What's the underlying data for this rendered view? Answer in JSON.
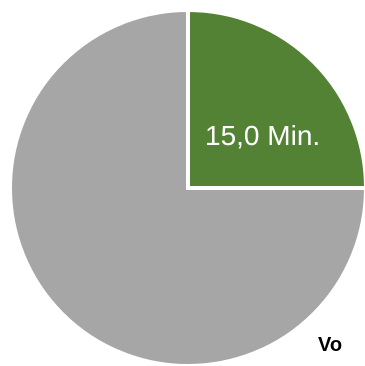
{
  "chart_data": {
    "type": "pie",
    "slices": [
      {
        "value": 15.0,
        "label": "15,0 Min.",
        "color": "#548235"
      },
      {
        "value": 45.0,
        "label": "",
        "color": "#a6a6a6"
      }
    ],
    "start_angle_deg": 0,
    "direction": "clockwise",
    "slice_separator_color": "#ffffff"
  },
  "clipped_text": "Vo"
}
